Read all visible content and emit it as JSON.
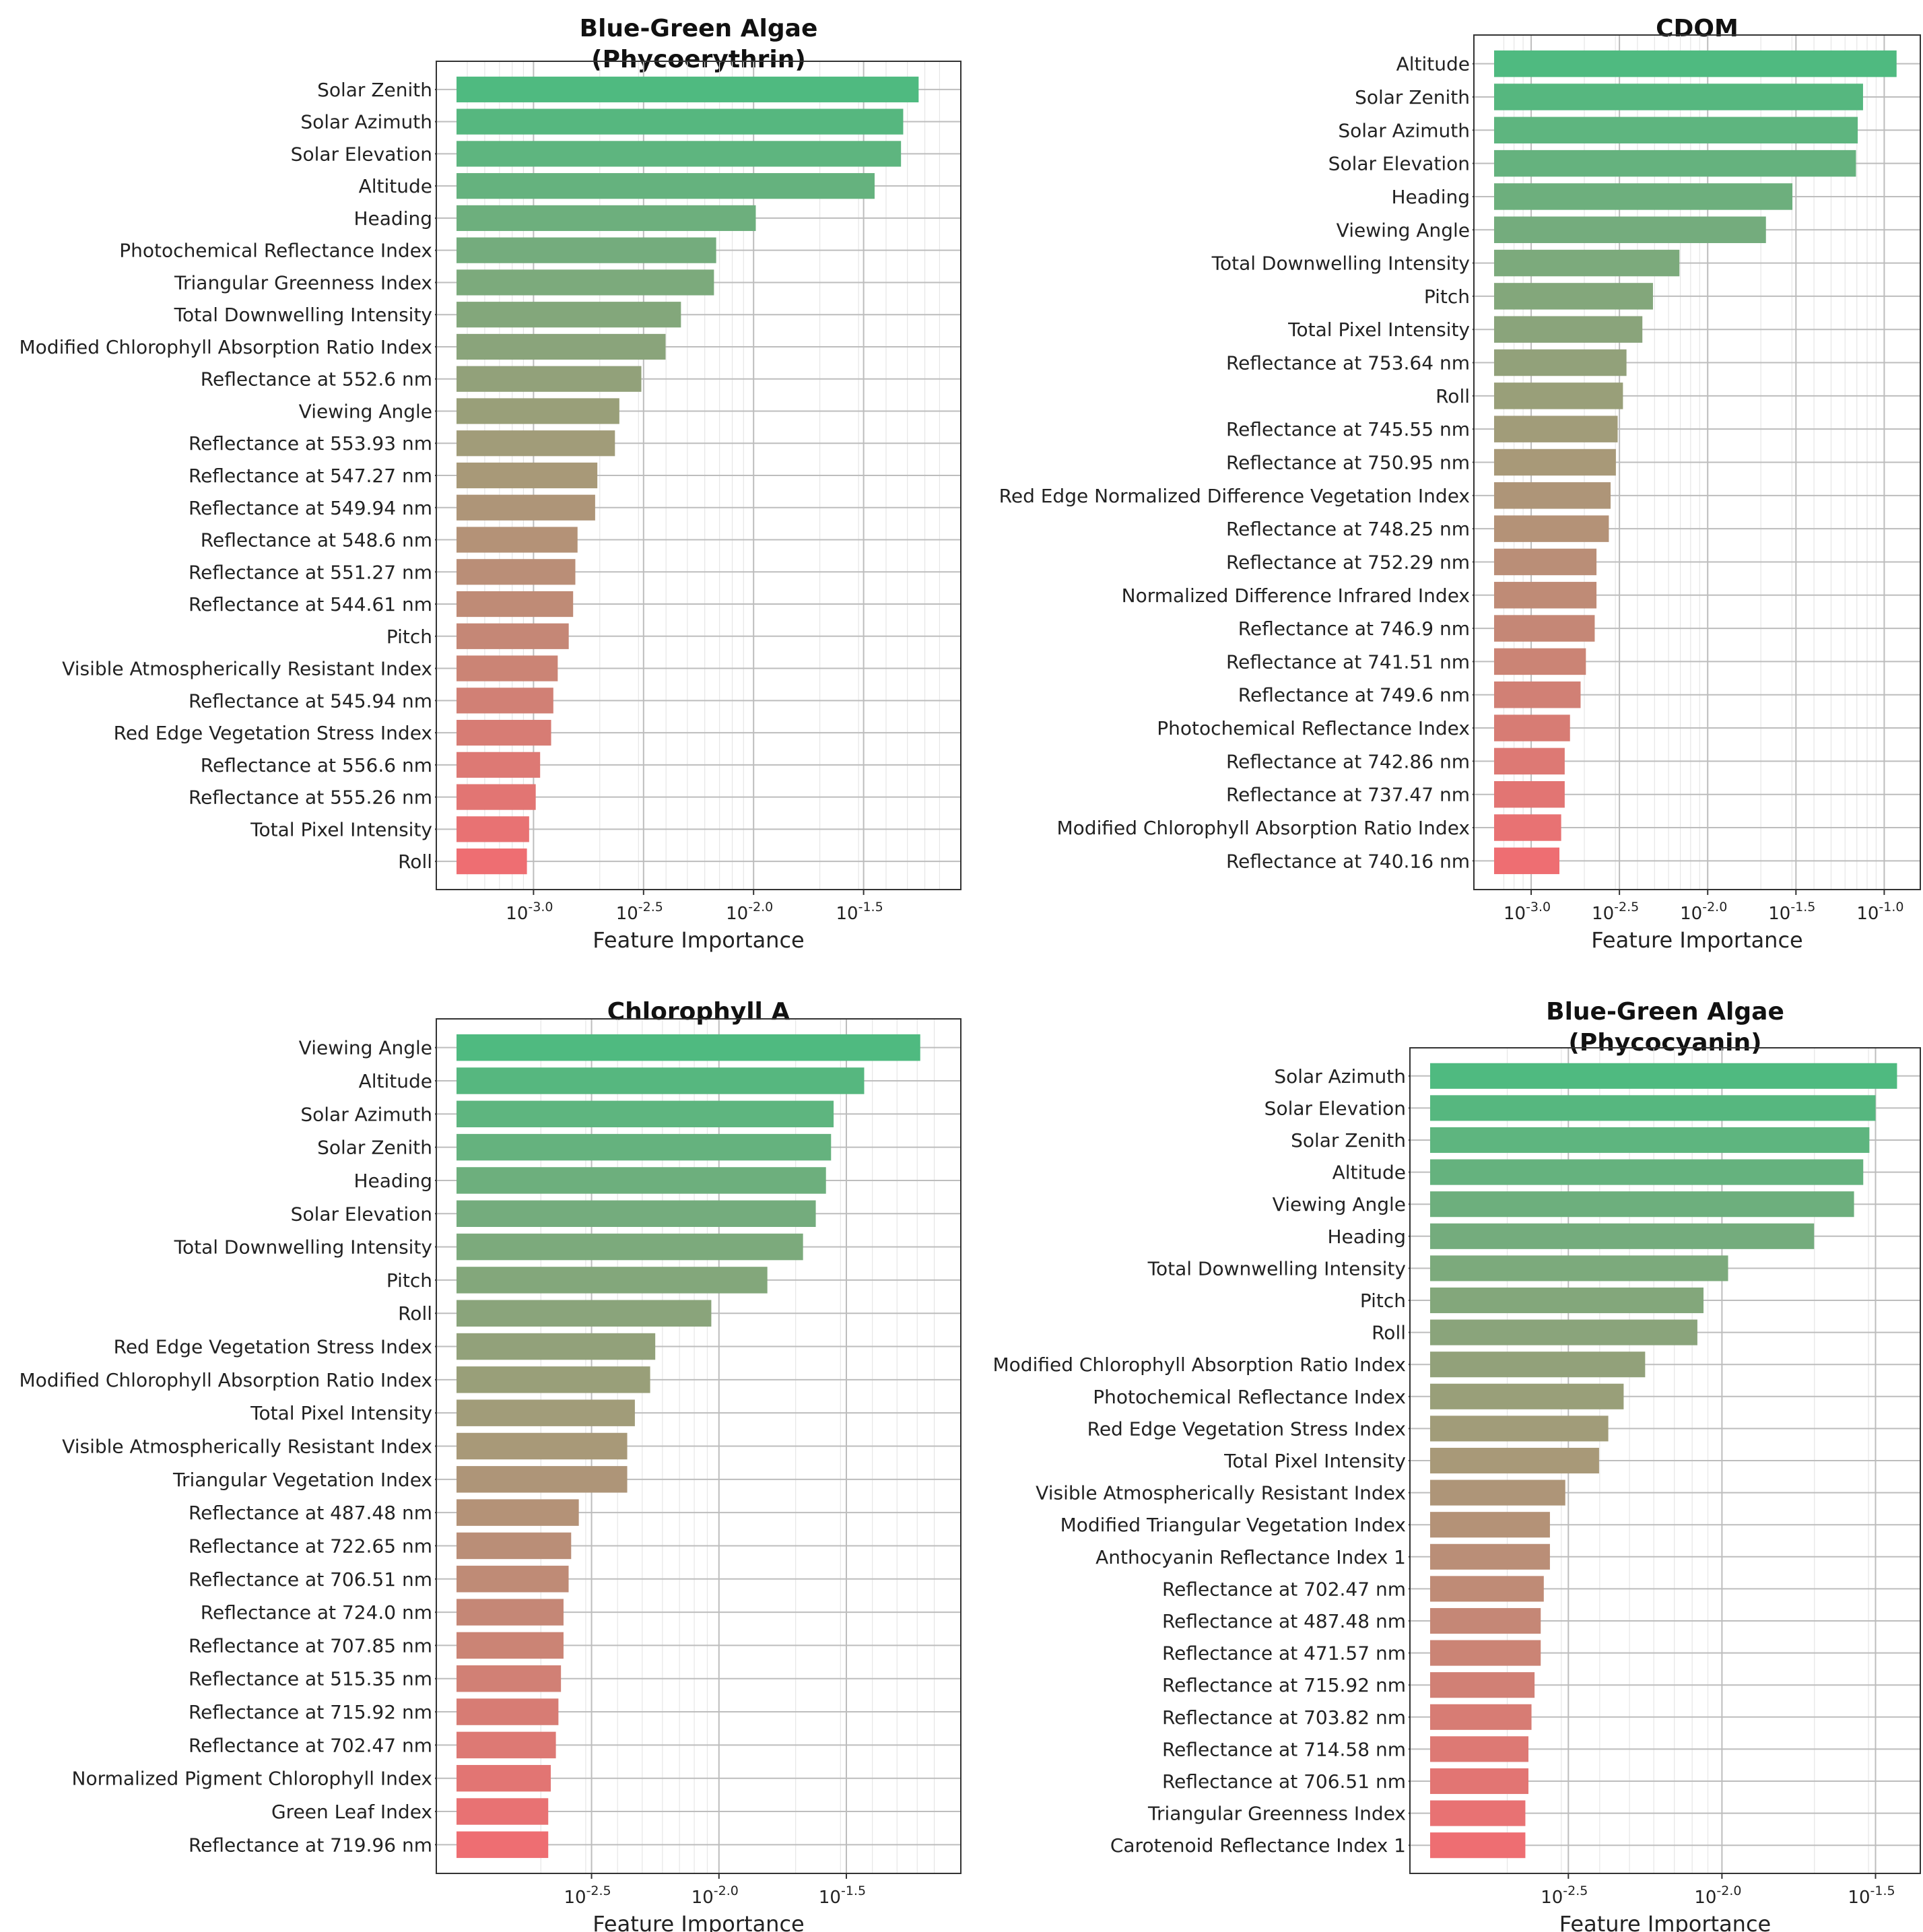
{
  "chart_data": [
    {
      "type": "bar",
      "orientation": "horizontal",
      "title": "Blue-Green Algae\n(Phycoerythrin)",
      "xlabel": "Feature Importance",
      "xscale": "log",
      "xlim_log10": [
        -3.35,
        -1.15
      ],
      "xticks": [
        {
          "exp": -3.0,
          "label": "-3.0"
        },
        {
          "exp": -2.5,
          "label": "-2.5"
        },
        {
          "exp": -2.0,
          "label": "-2.0"
        },
        {
          "exp": -1.5,
          "label": "-1.5"
        }
      ],
      "tick_base": "10",
      "grid": true,
      "categories": [
        "Solar Zenith",
        "Solar Azimuth",
        "Solar Elevation",
        "Altitude",
        "Heading",
        "Photochemical Reflectance Index",
        "Triangular Greenness Index",
        "Total Downwelling Intensity",
        "Modified Chlorophyll Absorption Ratio Index",
        "Reflectance at 552.6 nm",
        "Viewing Angle",
        "Reflectance at 553.93 nm",
        "Reflectance at 547.27 nm",
        "Reflectance at 549.94 nm",
        "Reflectance at 548.6 nm",
        "Reflectance at 551.27 nm",
        "Reflectance at 544.61 nm",
        "Pitch",
        "Visible Atmospherically Resistant Index",
        "Reflectance at 545.94 nm",
        "Red Edge Vegetation Stress Index",
        "Reflectance at 556.6 nm",
        "Reflectance at 555.26 nm",
        "Total Pixel Intensity",
        "Roll"
      ],
      "log10_values": [
        -1.25,
        -1.32,
        -1.33,
        -1.45,
        -1.99,
        -2.17,
        -2.18,
        -2.33,
        -2.4,
        -2.51,
        -2.61,
        -2.63,
        -2.71,
        -2.72,
        -2.8,
        -2.81,
        -2.82,
        -2.84,
        -2.89,
        -2.91,
        -2.92,
        -2.97,
        -2.99,
        -3.02,
        -3.03
      ]
    },
    {
      "type": "bar",
      "orientation": "horizontal",
      "title": "CDOM",
      "xlabel": "Feature Importance",
      "xscale": "log",
      "xlim_log10": [
        -3.21,
        -0.91
      ],
      "xticks": [
        {
          "exp": -3.0,
          "label": "-3.0"
        },
        {
          "exp": -2.5,
          "label": "-2.5"
        },
        {
          "exp": -2.0,
          "label": "-2.0"
        },
        {
          "exp": -1.5,
          "label": "-1.5"
        },
        {
          "exp": -1.0,
          "label": "-1.0"
        }
      ],
      "tick_base": "10",
      "grid": true,
      "categories": [
        "Altitude",
        "Solar Zenith",
        "Solar Azimuth",
        "Solar Elevation",
        "Heading",
        "Viewing Angle",
        "Total Downwelling Intensity",
        "Pitch",
        "Total Pixel Intensity",
        "Reflectance at 753.64 nm",
        "Roll",
        "Reflectance at 745.55 nm",
        "Reflectance at 750.95 nm",
        "Red Edge Normalized Difference Vegetation Index",
        "Reflectance at 748.25 nm",
        "Reflectance at 752.29 nm",
        "Normalized Difference Infrared Index",
        "Reflectance at 746.9 nm",
        "Reflectance at 741.51 nm",
        "Reflectance at 749.6 nm",
        "Photochemical Reflectance Index",
        "Reflectance at 742.86 nm",
        "Reflectance at 737.47 nm",
        "Modified Chlorophyll Absorption Ratio Index",
        "Reflectance at 740.16 nm"
      ],
      "log10_values": [
        -0.93,
        -1.12,
        -1.15,
        -1.16,
        -1.52,
        -1.67,
        -2.16,
        -2.31,
        -2.37,
        -2.46,
        -2.48,
        -2.51,
        -2.52,
        -2.55,
        -2.56,
        -2.63,
        -2.63,
        -2.64,
        -2.69,
        -2.72,
        -2.78,
        -2.81,
        -2.81,
        -2.83,
        -2.84
      ]
    },
    {
      "type": "bar",
      "orientation": "horizontal",
      "title": "Chlorophyll A",
      "xlabel": "Feature Importance",
      "xscale": "log",
      "xlim_log10": [
        -3.03,
        -1.13
      ],
      "xticks": [
        {
          "exp": -2.5,
          "label": "-2.5"
        },
        {
          "exp": -2.0,
          "label": "-2.0"
        },
        {
          "exp": -1.5,
          "label": "-1.5"
        }
      ],
      "tick_base": "10",
      "grid": true,
      "categories": [
        "Viewing Angle",
        "Altitude",
        "Solar Azimuth",
        "Solar Zenith",
        "Heading",
        "Solar Elevation",
        "Total Downwelling Intensity",
        "Pitch",
        "Roll",
        "Red Edge Vegetation Stress Index",
        "Modified Chlorophyll Absorption Ratio Index",
        "Total Pixel Intensity",
        "Visible Atmospherically Resistant Index",
        "Triangular Vegetation Index",
        "Reflectance at 487.48 nm",
        "Reflectance at 722.65 nm",
        "Reflectance at 706.51 nm",
        "Reflectance at 724.0 nm",
        "Reflectance at 707.85 nm",
        "Reflectance at 515.35 nm",
        "Reflectance at 715.92 nm",
        "Reflectance at 702.47 nm",
        "Normalized Pigment Chlorophyll Index",
        "Green Leaf Index",
        "Reflectance at 719.96 nm"
      ],
      "log10_values": [
        -1.21,
        -1.43,
        -1.55,
        -1.56,
        -1.58,
        -1.62,
        -1.67,
        -1.81,
        -2.03,
        -2.25,
        -2.27,
        -2.33,
        -2.36,
        -2.36,
        -2.55,
        -2.58,
        -2.59,
        -2.61,
        -2.61,
        -2.62,
        -2.63,
        -2.64,
        -2.66,
        -2.67,
        -2.67
      ]
    },
    {
      "type": "bar",
      "orientation": "horizontal",
      "title": "Blue-Green Algae\n(Phycocyanin)",
      "xlabel": "Feature Importance",
      "xscale": "log",
      "xlim_log10": [
        -2.95,
        -1.42
      ],
      "xticks": [
        {
          "exp": -2.5,
          "label": "-2.5"
        },
        {
          "exp": -2.0,
          "label": "-2.0"
        },
        {
          "exp": -1.5,
          "label": "-1.5"
        }
      ],
      "tick_base": "10",
      "grid": true,
      "categories": [
        "Solar Azimuth",
        "Solar Elevation",
        "Solar Zenith",
        "Altitude",
        "Viewing Angle",
        "Heading",
        "Total Downwelling Intensity",
        "Pitch",
        "Roll",
        "Modified Chlorophyll Absorption Ratio Index",
        "Photochemical Reflectance Index",
        "Red Edge Vegetation Stress Index",
        "Total Pixel Intensity",
        "Visible Atmospherically Resistant Index",
        "Modified Triangular Vegetation Index",
        "Anthocyanin Reflectance Index 1",
        "Reflectance at 702.47 nm",
        "Reflectance at 487.48 nm",
        "Reflectance at 471.57 nm",
        "Reflectance at 715.92 nm",
        "Reflectance at 703.82 nm",
        "Reflectance at 714.58 nm",
        "Reflectance at 706.51 nm",
        "Triangular Greenness Index",
        "Carotenoid Reflectance Index 1"
      ],
      "log10_values": [
        -1.43,
        -1.5,
        -1.52,
        -1.54,
        -1.57,
        -1.7,
        -1.98,
        -2.06,
        -2.08,
        -2.25,
        -2.32,
        -2.37,
        -2.4,
        -2.51,
        -2.56,
        -2.56,
        -2.58,
        -2.59,
        -2.59,
        -2.61,
        -2.62,
        -2.63,
        -2.63,
        -2.64,
        -2.64
      ]
    }
  ],
  "colors": {
    "top": "#4fba80",
    "middle": "#a89978",
    "bottom": "#ee6e72",
    "grid": "#bdbdbd",
    "minor_grid": "#e6e6e6",
    "axes": "#333333"
  }
}
